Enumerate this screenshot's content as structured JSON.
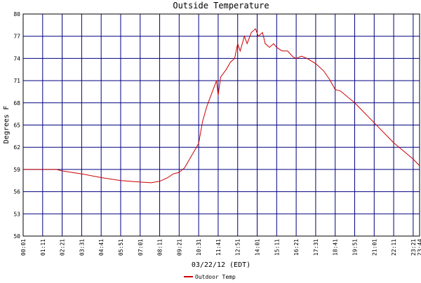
{
  "chart_data": {
    "type": "line",
    "title": "Outside Temperature",
    "xlabel": "03/22/12 (EDT)",
    "ylabel": "Degrees F",
    "x": [
      "00:01",
      "02:00",
      "02:21",
      "03:31",
      "04:41",
      "05:51",
      "07:01",
      "07:40",
      "08:11",
      "08:40",
      "09:00",
      "09:21",
      "09:40",
      "10:00",
      "10:20",
      "10:31",
      "10:45",
      "11:00",
      "11:20",
      "11:35",
      "11:41",
      "11:50",
      "12:10",
      "12:25",
      "12:40",
      "12:51",
      "13:00",
      "13:15",
      "13:25",
      "13:40",
      "13:55",
      "14:05",
      "14:20",
      "14:30",
      "14:45",
      "15:00",
      "15:11",
      "15:30",
      "15:50",
      "16:10",
      "16:21",
      "16:40",
      "17:00",
      "17:31",
      "18:00",
      "18:20",
      "18:41",
      "19:00",
      "19:51",
      "21:01",
      "22:11",
      "23:21",
      "23:44"
    ],
    "series": [
      {
        "name": "Outdoor Temp",
        "color": "#cc0000",
        "values": [
          59.0,
          59.0,
          58.8,
          58.4,
          57.9,
          57.5,
          57.3,
          57.2,
          57.4,
          57.9,
          58.4,
          58.6,
          59.2,
          60.5,
          61.8,
          62.5,
          65.5,
          67.5,
          69.5,
          71,
          69,
          71.5,
          72.5,
          73.5,
          74,
          76,
          75,
          77,
          76,
          77.5,
          78,
          77,
          77.5,
          76,
          75.5,
          76,
          75.5,
          75,
          75,
          74.2,
          74,
          74.3,
          74.0,
          73.3,
          72.3,
          71.2,
          69.8,
          69.6,
          68.0,
          65.3,
          62.6,
          60.4,
          59.5
        ]
      }
    ],
    "xlim": [
      "00:01",
      "23:44"
    ],
    "xticks": [
      "00:01",
      "01:11",
      "02:21",
      "03:31",
      "04:41",
      "05:51",
      "07:01",
      "08:11",
      "09:21",
      "10:31",
      "11:41",
      "12:51",
      "14:01",
      "15:11",
      "16:21",
      "17:31",
      "18:41",
      "19:51",
      "21:01",
      "22:11",
      "23:21",
      "23:44"
    ],
    "ylim": [
      50,
      80
    ],
    "yticks": [
      50,
      53,
      56,
      59,
      62,
      65,
      68,
      71,
      74,
      77,
      80
    ],
    "grid": true,
    "grid_color": "#000080",
    "legend": "bottom"
  }
}
